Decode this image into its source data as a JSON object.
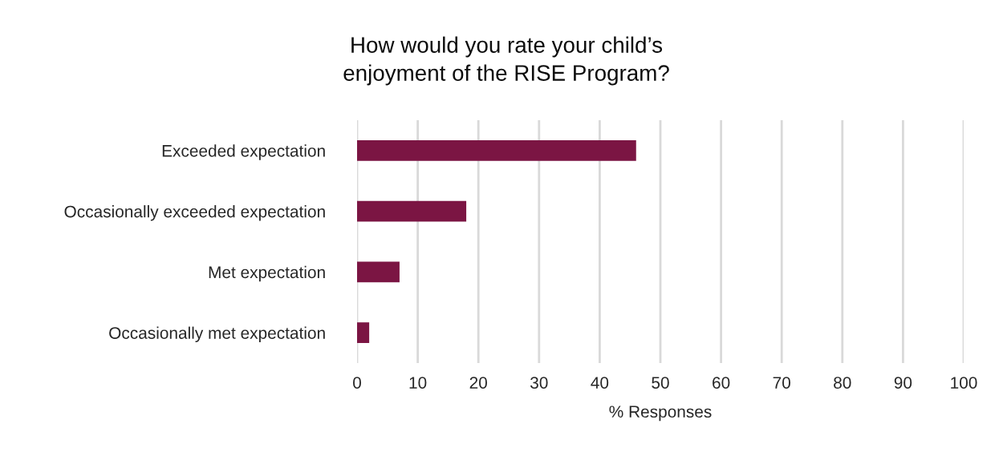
{
  "chart_data": {
    "type": "bar",
    "orientation": "horizontal",
    "title": "How would you rate your child’s\nenjoyment of the RISE Program?",
    "xlabel": "% Responses",
    "categories": [
      "Exceeded expectation",
      "Occasionally exceeded expectation",
      "Met expectation",
      "Occasionally met expectation"
    ],
    "values": [
      46,
      18,
      7,
      2
    ],
    "color": "#7b1543",
    "xlim": [
      0,
      100
    ],
    "xticks": [
      0,
      10,
      20,
      30,
      40,
      50,
      60,
      70,
      80,
      90,
      100
    ],
    "grid": "x",
    "legend": false
  }
}
